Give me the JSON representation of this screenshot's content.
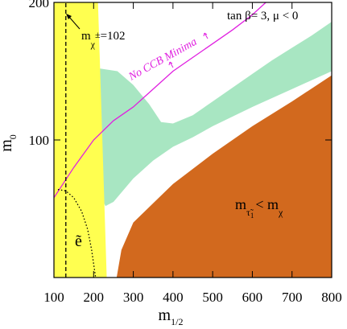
{
  "chart_data": {
    "type": "area",
    "xlabel": {
      "base": "m",
      "sub": "1/2"
    },
    "ylabel": {
      "base": "m",
      "sub": "0"
    },
    "xlim": [
      100,
      800
    ],
    "ylim": [
      0,
      200
    ],
    "xticks": [
      100,
      200,
      300,
      400,
      500,
      600,
      700,
      800
    ],
    "yticks": [
      100,
      200
    ],
    "regions": [
      {
        "color": "#a8e6c2",
        "x": [
          215,
          260,
          300,
          340,
          370,
          400,
          450,
          500,
          550,
          600,
          650,
          700,
          750,
          800,
          800,
          700,
          600,
          500,
          450,
          400,
          350,
          300,
          250,
          230,
          215
        ],
        "y": [
          152,
          150,
          140,
          126,
          113,
          112,
          118,
          128,
          138,
          148,
          158,
          167,
          176,
          186,
          150,
          137,
          124,
          110,
          102,
          95,
          85,
          72,
          55,
          52,
          60
        ]
      },
      {
        "color": "#d2691e",
        "x": [
          258,
          270,
          300,
          400,
          500,
          600,
          700,
          800,
          800
        ],
        "y": [
          0,
          20,
          40,
          68,
          90,
          110,
          128,
          147,
          0
        ]
      },
      {
        "color": "#ffff50",
        "x": [
          100,
          100,
          211,
          233
        ],
        "y": [
          0,
          200,
          200,
          0
        ]
      }
    ],
    "lines": [
      {
        "color": "#e020e0",
        "style": "solid",
        "x": [
          100,
          150,
          200,
          250,
          300,
          350,
          400,
          450,
          500,
          550,
          600,
          634
        ],
        "y": [
          58,
          80,
          100,
          114,
          124,
          137,
          150,
          160,
          170,
          180,
          191,
          200
        ]
      },
      {
        "color": "#000000",
        "style": "dashed",
        "x": [
          130,
          130
        ],
        "y": [
          0,
          200
        ]
      },
      {
        "color": "#000000",
        "style": "dotted",
        "x": [
          110,
          130,
          150,
          170,
          185,
          195,
          205
        ],
        "y": [
          64,
          63,
          58,
          48,
          35,
          20,
          0
        ]
      }
    ],
    "annotations": {
      "params": "tan  β= 3,  μ < 0",
      "chargino": {
        "base": "m",
        "sub": "χ",
        "sup": "±",
        "rest": "=102"
      },
      "ccb": "No CCB Minima",
      "stau": {
        "base": "m",
        "sub": "τ̃",
        "subsub": "1",
        "mid": "< m",
        "sub2": "χ"
      },
      "selectron": "ẽ"
    }
  }
}
